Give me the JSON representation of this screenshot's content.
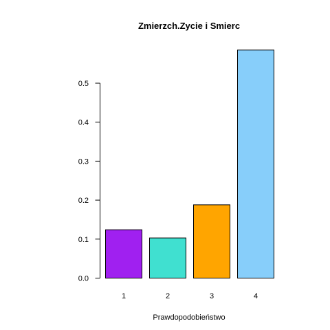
{
  "chart_data": {
    "type": "bar",
    "title": "Zmierzch.Zycie i Smierc",
    "xlabel": "Prawdopodobieństwo",
    "ylabel": "",
    "categories": [
      "1",
      "2",
      "3",
      "4"
    ],
    "values": [
      0.124,
      0.103,
      0.188,
      0.585
    ],
    "colors": [
      "#a020f0",
      "#40e0d0",
      "#ffa500",
      "#87cefa"
    ],
    "bar_border_color": "#000000",
    "ylim": [
      0,
      0.6
    ],
    "yticks": [
      0.0,
      0.1,
      0.2,
      0.3,
      0.4,
      0.5
    ],
    "ytick_labels": [
      "0.0",
      "0.1",
      "0.2",
      "0.3",
      "0.4",
      "0.5"
    ],
    "grid": false,
    "legend": "none"
  }
}
